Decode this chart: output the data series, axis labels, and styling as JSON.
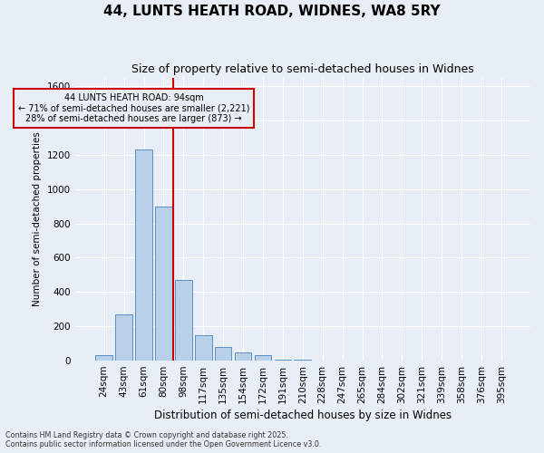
{
  "title_line1": "44, LUNTS HEATH ROAD, WIDNES, WA8 5RY",
  "title_line2": "Size of property relative to semi-detached houses in Widnes",
  "xlabel": "Distribution of semi-detached houses by size in Widnes",
  "ylabel": "Number of semi-detached properties",
  "categories": [
    "24sqm",
    "43sqm",
    "61sqm",
    "80sqm",
    "98sqm",
    "117sqm",
    "135sqm",
    "154sqm",
    "172sqm",
    "191sqm",
    "210sqm",
    "228sqm",
    "247sqm",
    "265sqm",
    "284sqm",
    "302sqm",
    "321sqm",
    "339sqm",
    "358sqm",
    "376sqm",
    "395sqm"
  ],
  "values": [
    30,
    270,
    1230,
    900,
    470,
    150,
    80,
    50,
    30,
    5,
    5,
    0,
    0,
    0,
    0,
    0,
    0,
    0,
    0,
    0,
    0
  ],
  "bar_color": "#b8d0e8",
  "bar_edge_color": "#5b8fc9",
  "marker_line_color": "#cc0000",
  "annotation_line1": "44 LUNTS HEATH ROAD: 94sqm",
  "annotation_line2": "← 71% of semi-detached houses are smaller (2,221)",
  "annotation_line3": "28% of semi-detached houses are larger (873) →",
  "annotation_box_edge_color": "#cc0000",
  "ylim": [
    0,
    1650
  ],
  "yticks": [
    0,
    200,
    400,
    600,
    800,
    1000,
    1200,
    1400,
    1600
  ],
  "bg_color": "#e8eef5",
  "grid_color": "#ffffff",
  "footer_line1": "Contains HM Land Registry data © Crown copyright and database right 2025.",
  "footer_line2": "Contains public sector information licensed under the Open Government Licence v3.0."
}
